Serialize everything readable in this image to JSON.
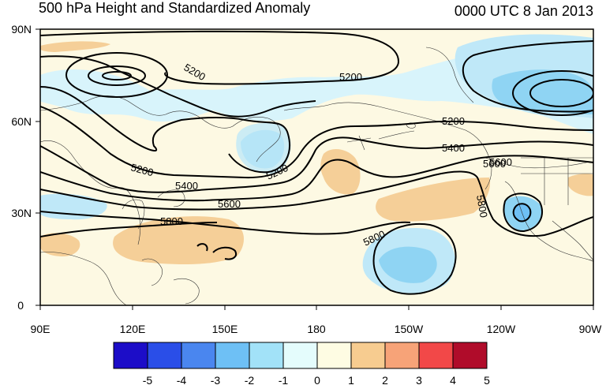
{
  "header": {
    "title": "500 hPa Height and Standardized Anomaly",
    "valid_time": "0000 UTC 8 Jan 2013"
  },
  "axes": {
    "lat_labels": [
      "90N",
      "60N",
      "30N",
      "0"
    ],
    "lon_labels": [
      "90E",
      "120E",
      "150E",
      "180",
      "150W",
      "120W",
      "90W"
    ]
  },
  "contour_labels": [
    "5200",
    "5200",
    "5200",
    "5200",
    "5200",
    "5400",
    "5400",
    "5600",
    "5600",
    "5800",
    "5800",
    "5800",
    "5600"
  ],
  "colorbar": {
    "labels": [
      "-5",
      "-4",
      "-3",
      "-2",
      "-1",
      "0",
      "1",
      "2",
      "3",
      "4",
      "5"
    ],
    "colors": [
      "#1c0dc8",
      "#2a4ee8",
      "#4a86ef",
      "#6ec0f5",
      "#a2e2f8",
      "#e4fcfc",
      "#fefce3",
      "#f7cc90",
      "#f7a378",
      "#f24848",
      "#b00c2a"
    ]
  },
  "colors": {
    "positive_anomaly": "#f5cf98",
    "negative_weak": "#bfe8f8",
    "negative_mid": "#8fd4f3",
    "background": "#fdf9e3"
  }
}
